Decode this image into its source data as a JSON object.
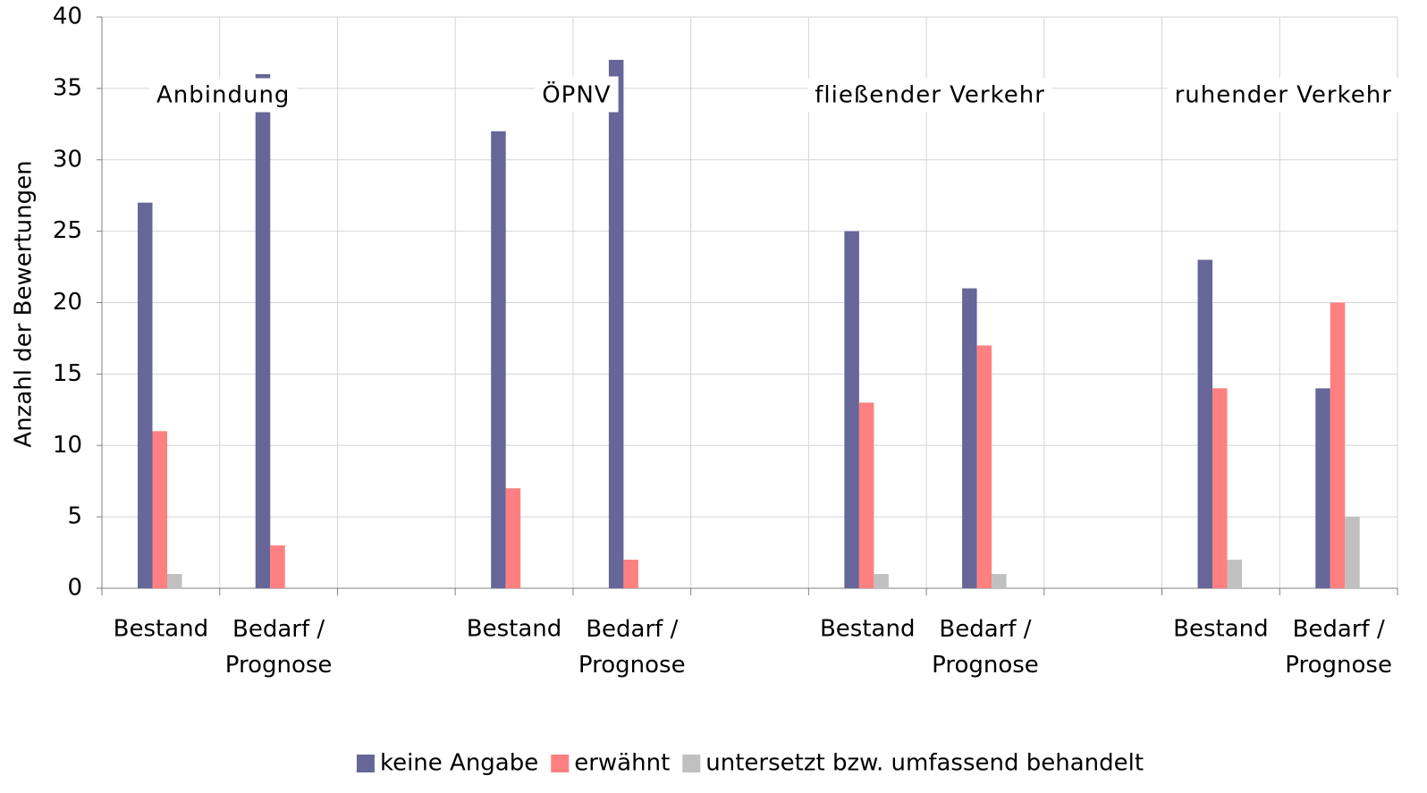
{
  "chart_data": {
    "type": "bar",
    "y_label": "Anzahl der Bewertungen",
    "categories": [
      "Bestand",
      "Bedarf / Prognose",
      null,
      "Bestand",
      "Bedarf / Prognose",
      null,
      "Bestand",
      "Bedarf / Prognose",
      null,
      "Bestand",
      "Bedarf / Prognose"
    ],
    "group_labels": [
      "Anbindung",
      "ÖPNV",
      "fließender Verkehr",
      "ruhender Verkehr"
    ],
    "series": [
      {
        "name": "keine Angabe",
        "color": "#666699",
        "values": [
          27,
          36,
          null,
          32,
          37,
          null,
          25,
          21,
          null,
          23,
          14
        ]
      },
      {
        "name": "erwähnt",
        "color": "#ff8080",
        "values": [
          11,
          3,
          null,
          7,
          2,
          null,
          13,
          17,
          null,
          14,
          20
        ]
      },
      {
        "name": "untersetzt bzw. umfassend behandelt",
        "color": "#c0c0c0",
        "values": [
          1,
          0,
          null,
          0,
          0,
          null,
          1,
          1,
          null,
          2,
          5
        ]
      }
    ],
    "ylim": [
      0,
      40
    ],
    "yticks": [
      0,
      5,
      10,
      15,
      20,
      25,
      30,
      35,
      40
    ],
    "grid": true,
    "legend": "bottom"
  }
}
